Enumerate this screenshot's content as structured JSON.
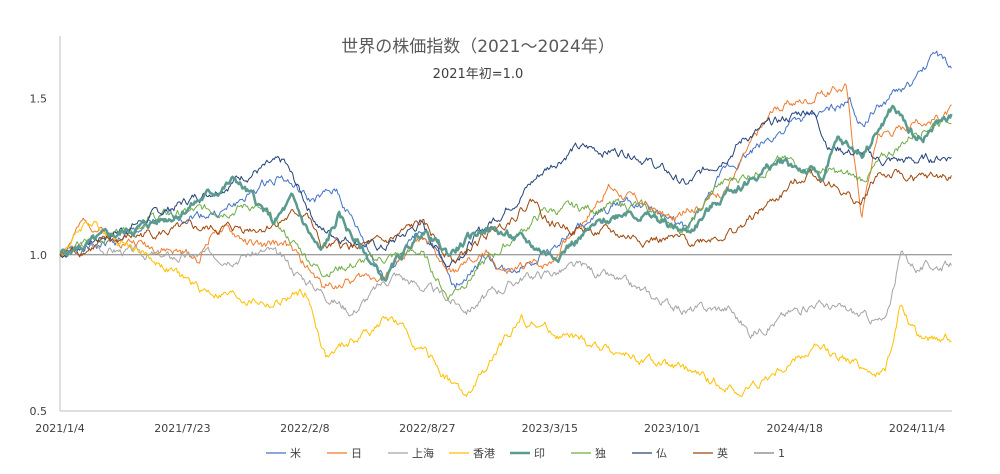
{
  "chart_data": {
    "type": "line",
    "title": "世界の株価指数（2021～2024年）",
    "subtitle": "2021年初=1.0",
    "xlabel": "",
    "ylabel": "",
    "ylim": [
      0.5,
      1.7
    ],
    "yticks": [
      0.5,
      1.0,
      1.5
    ],
    "ytick_labels": [
      "0.5",
      "1.0",
      "1.5"
    ],
    "xlim": [
      "2021-01-04",
      "2024-12-31"
    ],
    "xticks": [
      "2021-01-04",
      "2021-07-23",
      "2022-02-08",
      "2022-08-27",
      "2023-03-15",
      "2023-10-01",
      "2024-04-18",
      "2024-11-04"
    ],
    "xtick_labels": [
      "2021/1/4",
      "2021/7/23",
      "2022/2/8",
      "2022/8/27",
      "2023/3/15",
      "2023/10/1",
      "2024/4/18",
      "2024/11/4"
    ],
    "legend_position": "bottom",
    "grid": false,
    "series": [
      {
        "name": "米",
        "color": "#4472C4",
        "width": 1,
        "x": [
          "2021-01-04",
          "2021-04-01",
          "2021-07-01",
          "2021-10-01",
          "2021-12-30",
          "2022-02-15",
          "2022-04-01",
          "2022-06-16",
          "2022-08-16",
          "2022-10-12",
          "2022-12-01",
          "2023-01-05",
          "2023-03-15",
          "2023-07-20",
          "2023-10-27",
          "2023-12-29",
          "2024-03-28",
          "2024-07-16",
          "2024-08-05",
          "2024-10-01",
          "2024-11-04",
          "2024-12-06",
          "2024-12-31"
        ],
        "values": [
          1.0,
          1.04,
          1.12,
          1.14,
          1.26,
          1.17,
          1.2,
          0.93,
          1.08,
          0.9,
          1.0,
          0.94,
          1.02,
          1.18,
          1.08,
          1.27,
          1.4,
          1.49,
          1.42,
          1.52,
          1.55,
          1.65,
          1.59
        ]
      },
      {
        "name": "日",
        "color": "#ED7D31",
        "width": 1,
        "x": [
          "2021-01-04",
          "2021-02-16",
          "2021-04-01",
          "2021-08-20",
          "2021-09-14",
          "2021-12-01",
          "2022-01-04",
          "2022-03-09",
          "2022-06-20",
          "2022-08-17",
          "2022-10-03",
          "2022-12-01",
          "2023-01-04",
          "2023-03-15",
          "2023-06-19",
          "2023-10-04",
          "2023-12-29",
          "2024-02-22",
          "2024-03-22",
          "2024-07-11",
          "2024-08-05",
          "2024-09-01",
          "2024-11-04",
          "2024-12-31"
        ],
        "values": [
          1.0,
          1.11,
          1.06,
          0.99,
          1.09,
          1.02,
          1.04,
          0.9,
          0.94,
          1.05,
          0.94,
          1.0,
          0.94,
          0.98,
          1.22,
          1.11,
          1.22,
          1.4,
          1.47,
          1.54,
          1.13,
          1.39,
          1.42,
          1.46
        ]
      },
      {
        "name": "上海",
        "color": "#A5A5A5",
        "width": 1,
        "x": [
          "2021-01-04",
          "2021-02-18",
          "2021-07-01",
          "2021-12-13",
          "2022-01-27",
          "2022-04-26",
          "2022-07-05",
          "2022-10-31",
          "2023-01-30",
          "2023-05-09",
          "2023-10-23",
          "2024-01-02",
          "2024-02-05",
          "2024-05-20",
          "2024-09-13",
          "2024-10-08",
          "2024-11-04",
          "2024-12-31"
        ],
        "values": [
          1.0,
          1.03,
          0.99,
          1.01,
          0.94,
          0.82,
          0.94,
          0.83,
          0.93,
          0.96,
          0.82,
          0.83,
          0.75,
          0.85,
          0.78,
          1.0,
          0.96,
          0.97
        ]
      },
      {
        "name": "香港",
        "color": "#FFC000",
        "width": 1,
        "x": [
          "2021-01-04",
          "2021-02-17",
          "2021-05-01",
          "2021-08-20",
          "2021-12-20",
          "2022-02-09",
          "2022-03-15",
          "2022-06-27",
          "2022-10-31",
          "2023-01-27",
          "2023-04-01",
          "2023-10-30",
          "2024-01-22",
          "2024-05-20",
          "2024-09-13",
          "2024-10-07",
          "2024-11-04",
          "2024-12-31"
        ],
        "values": [
          1.0,
          1.11,
          1.03,
          0.89,
          0.84,
          0.88,
          0.67,
          0.8,
          0.54,
          0.8,
          0.74,
          0.62,
          0.56,
          0.7,
          0.62,
          0.84,
          0.74,
          0.74
        ]
      },
      {
        "name": "印",
        "color": "#5B9B8F",
        "width": 2.5,
        "x": [
          "2021-01-04",
          "2021-03-31",
          "2021-06-30",
          "2021-10-18",
          "2021-12-20",
          "2022-01-17",
          "2022-03-07",
          "2022-04-04",
          "2022-06-17",
          "2022-08-19",
          "2022-09-30",
          "2022-12-01",
          "2023-03-20",
          "2023-07-20",
          "2023-10-26",
          "2023-12-29",
          "2024-03-28",
          "2024-06-04",
          "2024-06-28",
          "2024-08-05",
          "2024-09-26",
          "2024-11-04",
          "2024-12-31"
        ],
        "values": [
          1.0,
          1.06,
          1.12,
          1.24,
          1.1,
          1.17,
          1.0,
          1.12,
          0.92,
          1.08,
          1.0,
          1.09,
          1.0,
          1.15,
          1.07,
          1.2,
          1.3,
          1.25,
          1.36,
          1.32,
          1.47,
          1.37,
          1.45
        ]
      },
      {
        "name": "独",
        "color": "#70AD47",
        "width": 1,
        "x": [
          "2021-01-04",
          "2021-06-01",
          "2021-11-17",
          "2022-03-07",
          "2022-08-16",
          "2022-09-29",
          "2023-03-07",
          "2023-07-31",
          "2023-10-26",
          "2023-12-14",
          "2024-03-28",
          "2024-08-05",
          "2024-11-04",
          "2024-12-31"
        ],
        "values": [
          1.0,
          1.12,
          1.16,
          0.95,
          1.01,
          0.87,
          1.14,
          1.16,
          1.08,
          1.22,
          1.3,
          1.24,
          1.4,
          1.45
        ]
      },
      {
        "name": "仏",
        "color": "#264478",
        "width": 1,
        "x": [
          "2021-01-04",
          "2021-06-01",
          "2021-11-17",
          "2022-01-05",
          "2022-03-07",
          "2022-06-16",
          "2022-08-16",
          "2022-09-29",
          "2023-03-06",
          "2023-04-21",
          "2023-07-31",
          "2023-10-26",
          "2024-02-01",
          "2024-05-15",
          "2024-06-14",
          "2024-09-10",
          "2024-11-04",
          "2024-12-31"
        ],
        "values": [
          1.0,
          1.12,
          1.27,
          1.29,
          1.08,
          1.02,
          1.1,
          0.97,
          1.27,
          1.34,
          1.33,
          1.22,
          1.38,
          1.47,
          1.35,
          1.3,
          1.3,
          1.32
        ]
      },
      {
        "name": "英",
        "color": "#9E480E",
        "width": 1,
        "x": [
          "2021-01-04",
          "2021-06-01",
          "2021-12-01",
          "2022-02-10",
          "2022-03-07",
          "2022-06-16",
          "2022-08-16",
          "2022-10-12",
          "2023-02-16",
          "2023-03-17",
          "2023-07-07",
          "2023-10-27",
          "2024-01-17",
          "2024-05-15",
          "2024-08-05",
          "2024-09-01",
          "2024-11-04",
          "2024-12-31"
        ],
        "values": [
          1.0,
          1.07,
          1.09,
          1.14,
          1.02,
          1.03,
          1.1,
          0.98,
          1.18,
          1.1,
          1.06,
          1.04,
          1.08,
          1.27,
          1.16,
          1.26,
          1.24,
          1.25
        ]
      },
      {
        "name": "1",
        "color": "#7F7F7F",
        "width": 1,
        "x": [
          "2021-01-04",
          "2024-12-31"
        ],
        "values": [
          1.0,
          1.0
        ]
      }
    ]
  }
}
